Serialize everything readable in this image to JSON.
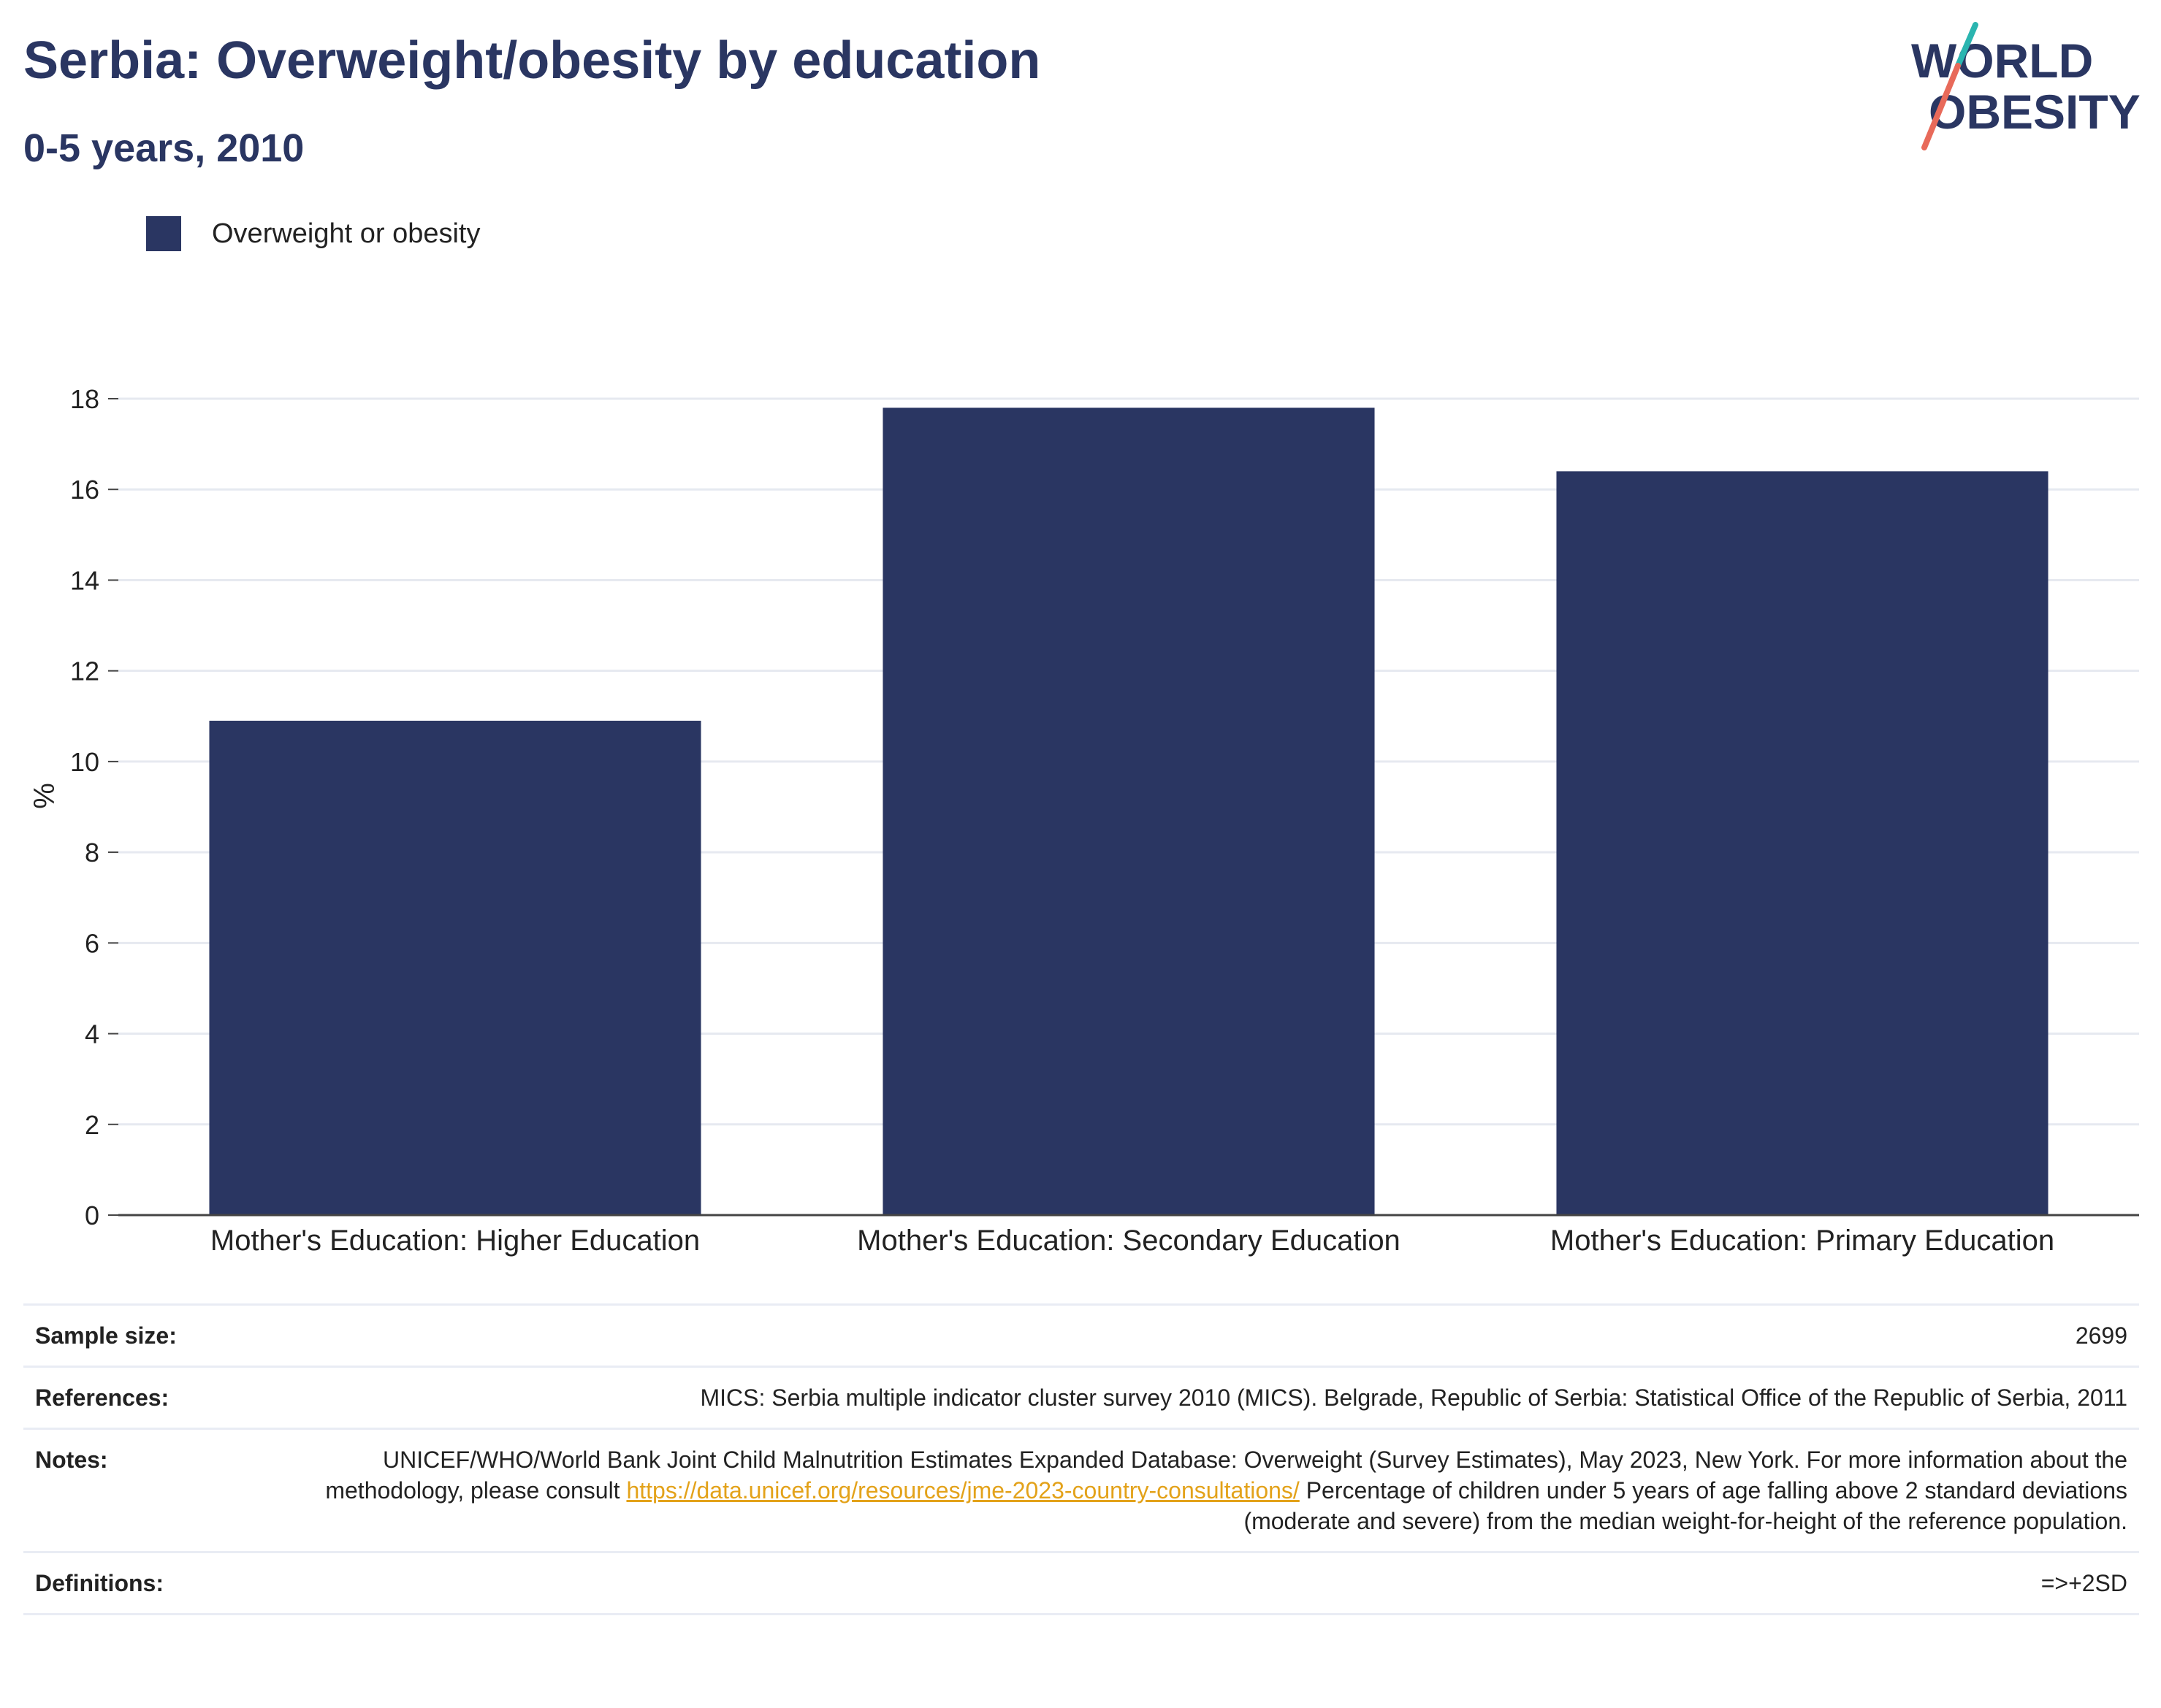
{
  "title": "Serbia: Overweight/obesity by education",
  "subtitle": "0-5 years, 2010",
  "logo": {
    "line1": "WORLD",
    "line2": "OBESITY"
  },
  "colors": {
    "bar": "#2a3662",
    "title": "#2a3662",
    "grid": "#e6e9f0",
    "link": "#e3a21a",
    "logo_teal": "#2bb5b0",
    "logo_coral": "#e86a5a"
  },
  "chart_data": {
    "type": "bar",
    "categories": [
      "Mother's Education: Higher Education",
      "Mother's Education: Secondary Education",
      "Mother's Education: Primary Education"
    ],
    "series": [
      {
        "name": "Overweight or obesity",
        "values": [
          10.9,
          17.8,
          16.4
        ]
      }
    ],
    "ylabel": "%",
    "ylim": [
      0,
      18
    ],
    "yticks": [
      0,
      2,
      4,
      6,
      8,
      10,
      12,
      14,
      16,
      18
    ],
    "grid": true,
    "legend_position": "top-left"
  },
  "info": {
    "sample_size": {
      "label": "Sample size:",
      "value": "2699"
    },
    "references": {
      "label": "References:",
      "value": "MICS: Serbia multiple indicator cluster survey 2010 (MICS). Belgrade, Republic of Serbia: Statistical Office of the Republic of Serbia, 2011"
    },
    "notes": {
      "label": "Notes:",
      "text_before": "UNICEF/WHO/World Bank Joint Child Malnutrition Estimates Expanded Database: Overweight (Survey Estimates), May 2023, New York. For more information about the methodology, please consult ",
      "link": "https://data.unicef.org/resources/jme-2023-country-consultations/",
      "text_after": " Percentage of children under 5 years of age falling above 2 standard deviations (moderate and severe) from the median weight-for-height of the reference population."
    },
    "definitions": {
      "label": "Definitions:",
      "value": "=>+2SD"
    }
  }
}
